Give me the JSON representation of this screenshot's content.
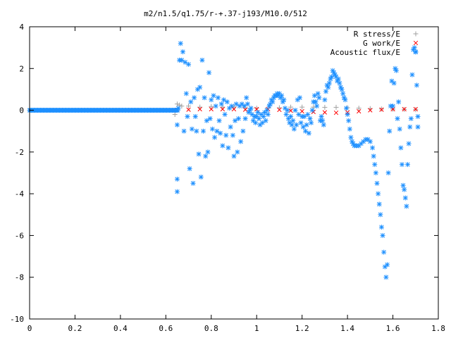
{
  "chart_data": {
    "type": "scatter",
    "title": "m2/n1.5/q1.75/r-+.37-j193/M10.0/512",
    "xlabel": "",
    "ylabel": "",
    "xlim": [
      0,
      1.8
    ],
    "ylim": [
      -10,
      4
    ],
    "grid": false,
    "legend_position": "top-right",
    "x_ticks": [
      "0",
      "0.2",
      "0.4",
      "0.6",
      "0.8",
      "1",
      "1.2",
      "1.4",
      "1.6",
      "1.8"
    ],
    "y_ticks": [
      "4",
      "2",
      "0",
      "-2",
      "-4",
      "-6",
      "-8",
      "-10"
    ],
    "x_tick_values": [
      0,
      0.2,
      0.4,
      0.6,
      0.8,
      1.0,
      1.2,
      1.4,
      1.6,
      1.8
    ],
    "y_tick_values": [
      4,
      2,
      0,
      -2,
      -4,
      -6,
      -8,
      -10
    ],
    "series": [
      {
        "name": "R stress/E",
        "marker": "plus",
        "color": "#a0a0a0",
        "points": [
          [
            0.64,
            -0.2
          ],
          [
            0.65,
            0.3
          ],
          [
            0.66,
            0.25
          ],
          [
            0.67,
            0.2
          ],
          [
            0.7,
            0.2
          ],
          [
            0.75,
            0.15
          ],
          [
            0.8,
            0.18
          ],
          [
            0.85,
            0.15
          ],
          [
            0.9,
            0.16
          ],
          [
            0.95,
            0.12
          ],
          [
            1.0,
            0.1
          ],
          [
            1.05,
            0.1
          ],
          [
            1.1,
            0.12
          ],
          [
            1.15,
            0.15
          ],
          [
            1.2,
            0.15
          ],
          [
            1.25,
            0.15
          ],
          [
            1.3,
            0.14
          ],
          [
            1.35,
            0.14
          ],
          [
            1.4,
            0.12
          ],
          [
            1.45,
            0.1
          ],
          [
            1.5,
            0.08
          ],
          [
            1.55,
            0.06
          ],
          [
            1.6,
            0.05
          ],
          [
            1.65,
            0.04
          ],
          [
            1.7,
            0.03
          ]
        ]
      },
      {
        "name": "G work/E",
        "marker": "cross",
        "color": "#ff0000",
        "points": [
          [
            0.65,
            0.02
          ],
          [
            0.7,
            0.03
          ],
          [
            0.75,
            0.05
          ],
          [
            0.8,
            0.05
          ],
          [
            0.85,
            0.05
          ],
          [
            0.9,
            0.05
          ],
          [
            0.95,
            0.03
          ],
          [
            1.0,
            0.05
          ],
          [
            1.05,
            0.05
          ],
          [
            1.1,
            0.02
          ],
          [
            1.15,
            -0.02
          ],
          [
            1.2,
            -0.05
          ],
          [
            1.25,
            -0.08
          ],
          [
            1.3,
            -0.1
          ],
          [
            1.35,
            -0.12
          ],
          [
            1.4,
            -0.1
          ],
          [
            1.45,
            -0.05
          ],
          [
            1.5,
            0.0
          ],
          [
            1.55,
            0.03
          ],
          [
            1.6,
            0.05
          ],
          [
            1.65,
            0.05
          ],
          [
            1.7,
            0.05
          ]
        ]
      },
      {
        "name": "Acoustic flux/E",
        "marker": "star",
        "color": "#1e90ff",
        "points": [
          [
            0.65,
            -3.9
          ],
          [
            0.65,
            -3.3
          ],
          [
            0.65,
            -0.7
          ],
          [
            0.655,
            0.1
          ],
          [
            0.66,
            2.4
          ],
          [
            0.665,
            3.2
          ],
          [
            0.67,
            2.4
          ],
          [
            0.675,
            2.8
          ],
          [
            0.68,
            -1.0
          ],
          [
            0.685,
            2.3
          ],
          [
            0.69,
            0.8
          ],
          [
            0.695,
            -0.3
          ],
          [
            0.7,
            2.2
          ],
          [
            0.705,
            -2.8
          ],
          [
            0.71,
            0.4
          ],
          [
            0.715,
            -0.9
          ],
          [
            0.72,
            -3.5
          ],
          [
            0.725,
            0.6
          ],
          [
            0.73,
            -0.3
          ],
          [
            0.735,
            -1.0
          ],
          [
            0.74,
            1.0
          ],
          [
            0.745,
            -2.1
          ],
          [
            0.75,
            1.1
          ],
          [
            0.755,
            -3.2
          ],
          [
            0.76,
            2.4
          ],
          [
            0.765,
            -1.0
          ],
          [
            0.77,
            0.6
          ],
          [
            0.775,
            -2.2
          ],
          [
            0.78,
            -0.5
          ],
          [
            0.785,
            -2.0
          ],
          [
            0.79,
            1.8
          ],
          [
            0.795,
            -0.4
          ],
          [
            0.8,
            0.5
          ],
          [
            0.805,
            -0.9
          ],
          [
            0.81,
            0.7
          ],
          [
            0.815,
            -1.3
          ],
          [
            0.82,
            0.2
          ],
          [
            0.825,
            -1.0
          ],
          [
            0.83,
            0.6
          ],
          [
            0.835,
            -0.5
          ],
          [
            0.84,
            -1.1
          ],
          [
            0.845,
            0.3
          ],
          [
            0.85,
            -1.7
          ],
          [
            0.855,
            0.5
          ],
          [
            0.86,
            -0.2
          ],
          [
            0.865,
            -1.2
          ],
          [
            0.87,
            0.4
          ],
          [
            0.875,
            -1.8
          ],
          [
            0.88,
            0.1
          ],
          [
            0.885,
            -0.8
          ],
          [
            0.89,
            0.2
          ],
          [
            0.895,
            -1.2
          ],
          [
            0.9,
            -2.2
          ],
          [
            0.905,
            -0.5
          ],
          [
            0.91,
            0.3
          ],
          [
            0.915,
            -2.0
          ],
          [
            0.92,
            -0.4
          ],
          [
            0.925,
            0.2
          ],
          [
            0.93,
            -1.5
          ],
          [
            0.935,
            0.3
          ],
          [
            0.94,
            -1.0
          ],
          [
            0.945,
            0.2
          ],
          [
            0.95,
            -0.4
          ],
          [
            0.955,
            0.6
          ],
          [
            0.96,
            0.3
          ],
          [
            0.965,
            -0.1
          ],
          [
            0.97,
            0.0
          ],
          [
            0.975,
            0.1
          ],
          [
            0.98,
            -0.2
          ],
          [
            0.985,
            -0.5
          ],
          [
            0.99,
            -0.3
          ],
          [
            0.995,
            -0.6
          ],
          [
            1.0,
            -0.3
          ],
          [
            1.005,
            -0.1
          ],
          [
            1.01,
            -0.4
          ],
          [
            1.015,
            -0.7
          ],
          [
            1.02,
            -0.2
          ],
          [
            1.025,
            -0.6
          ],
          [
            1.03,
            -0.3
          ],
          [
            1.035,
            -0.1
          ],
          [
            1.04,
            -0.5
          ],
          [
            1.045,
            0.0
          ],
          [
            1.05,
            -0.2
          ],
          [
            1.055,
            0.2
          ],
          [
            1.06,
            0.3
          ],
          [
            1.065,
            0.5
          ],
          [
            1.07,
            0.4
          ],
          [
            1.075,
            0.6
          ],
          [
            1.08,
            0.7
          ],
          [
            1.085,
            0.7
          ],
          [
            1.09,
            0.8
          ],
          [
            1.095,
            0.7
          ],
          [
            1.1,
            0.8
          ],
          [
            1.105,
            0.6
          ],
          [
            1.11,
            0.7
          ],
          [
            1.115,
            0.4
          ],
          [
            1.12,
            0.5
          ],
          [
            1.125,
            0.1
          ],
          [
            1.13,
            -0.2
          ],
          [
            1.135,
            0.0
          ],
          [
            1.14,
            -0.4
          ],
          [
            1.145,
            -0.6
          ],
          [
            1.15,
            -0.3
          ],
          [
            1.155,
            -0.7
          ],
          [
            1.16,
            -0.5
          ],
          [
            1.165,
            -0.9
          ],
          [
            1.17,
            0.0
          ],
          [
            1.175,
            -0.7
          ],
          [
            1.18,
            0.5
          ],
          [
            1.185,
            -0.2
          ],
          [
            1.19,
            0.6
          ],
          [
            1.195,
            -0.6
          ],
          [
            1.2,
            -0.3
          ],
          [
            1.205,
            -0.8
          ],
          [
            1.21,
            -0.3
          ],
          [
            1.215,
            -1.0
          ],
          [
            1.22,
            -0.7
          ],
          [
            1.225,
            -0.2
          ],
          [
            1.23,
            -1.1
          ],
          [
            1.235,
            -0.4
          ],
          [
            1.24,
            -0.6
          ],
          [
            1.245,
            0.0
          ],
          [
            1.25,
            0.4
          ],
          [
            1.255,
            0.7
          ],
          [
            1.26,
            0.4
          ],
          [
            1.265,
            0.2
          ],
          [
            1.27,
            0.8
          ],
          [
            1.275,
            0.6
          ],
          [
            1.28,
            -0.5
          ],
          [
            1.285,
            -0.3
          ],
          [
            1.29,
            -0.5
          ],
          [
            1.295,
            -0.7
          ],
          [
            1.3,
            0.5
          ],
          [
            1.305,
            0.9
          ],
          [
            1.31,
            1.2
          ],
          [
            1.315,
            1.1
          ],
          [
            1.32,
            1.3
          ],
          [
            1.325,
            1.5
          ],
          [
            1.33,
            1.6
          ],
          [
            1.335,
            1.9
          ],
          [
            1.34,
            1.8
          ],
          [
            1.345,
            1.7
          ],
          [
            1.35,
            1.6
          ],
          [
            1.355,
            1.4
          ],
          [
            1.36,
            1.5
          ],
          [
            1.365,
            1.3
          ],
          [
            1.37,
            1.1
          ],
          [
            1.375,
            1.0
          ],
          [
            1.38,
            0.8
          ],
          [
            1.385,
            0.6
          ],
          [
            1.39,
            0.5
          ],
          [
            1.395,
            0.1
          ],
          [
            1.4,
            -0.2
          ],
          [
            1.405,
            -0.5
          ],
          [
            1.41,
            -0.9
          ],
          [
            1.415,
            -1.3
          ],
          [
            1.42,
            -1.5
          ],
          [
            1.425,
            -1.6
          ],
          [
            1.43,
            -1.7
          ],
          [
            1.44,
            -1.7
          ],
          [
            1.45,
            -1.7
          ],
          [
            1.46,
            -1.6
          ],
          [
            1.47,
            -1.5
          ],
          [
            1.48,
            -1.4
          ],
          [
            1.49,
            -1.4
          ],
          [
            1.5,
            -1.5
          ],
          [
            1.51,
            -1.8
          ],
          [
            1.515,
            -2.2
          ],
          [
            1.52,
            -2.6
          ],
          [
            1.525,
            -3.0
          ],
          [
            1.53,
            -3.5
          ],
          [
            1.535,
            -4.0
          ],
          [
            1.54,
            -4.5
          ],
          [
            1.545,
            -5.0
          ],
          [
            1.55,
            -5.6
          ],
          [
            1.555,
            -6.0
          ],
          [
            1.56,
            -6.8
          ],
          [
            1.565,
            -7.5
          ],
          [
            1.57,
            -8.0
          ],
          [
            1.575,
            -7.4
          ],
          [
            1.58,
            -3.0
          ],
          [
            1.585,
            -1.0
          ],
          [
            1.59,
            0.2
          ],
          [
            1.595,
            1.4
          ],
          [
            1.6,
            0.2
          ],
          [
            1.605,
            1.3
          ],
          [
            1.61,
            2.0
          ],
          [
            1.615,
            1.9
          ],
          [
            1.62,
            -0.4
          ],
          [
            1.625,
            0.4
          ],
          [
            1.63,
            -0.9
          ],
          [
            1.635,
            -1.8
          ],
          [
            1.64,
            -2.6
          ],
          [
            1.645,
            -3.6
          ],
          [
            1.65,
            -3.8
          ],
          [
            1.655,
            -4.2
          ],
          [
            1.66,
            -4.6
          ],
          [
            1.665,
            -2.6
          ],
          [
            1.67,
            -1.6
          ],
          [
            1.675,
            -0.8
          ],
          [
            1.68,
            -0.4
          ],
          [
            1.685,
            1.7
          ],
          [
            1.69,
            2.9
          ],
          [
            1.695,
            3.0
          ],
          [
            1.7,
            2.8
          ],
          [
            1.705,
            1.2
          ],
          [
            1.71,
            -0.3
          ],
          [
            1.71,
            -0.8
          ]
        ]
      }
    ]
  }
}
